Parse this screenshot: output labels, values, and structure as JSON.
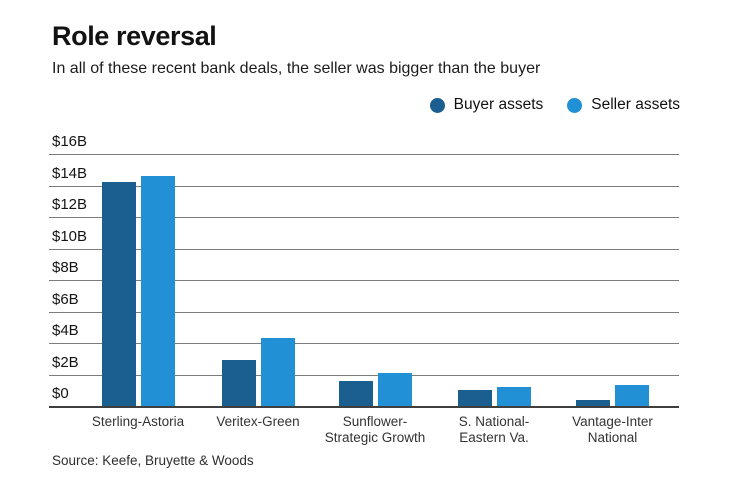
{
  "header": {
    "title": "Role reversal",
    "subtitle": "In all of these recent bank deals, the seller was bigger than the buyer"
  },
  "legend": {
    "items": [
      {
        "label": "Buyer assets",
        "color": "#1B5F91"
      },
      {
        "label": "Seller assets",
        "color": "#2290D5"
      }
    ]
  },
  "chart_data": {
    "type": "bar",
    "title": "Role reversal",
    "subtitle": "In all of these recent bank deals, the seller was bigger than the buyer",
    "categories": [
      "Sterling-Astoria",
      "Veritex-Green",
      "Sunflower-\nStrategic Growth",
      "S. National-\nEastern Va.",
      "Vantage-Inter\nNational"
    ],
    "series": [
      {
        "name": "Buyer assets",
        "color": "#1B5F91",
        "values": [
          14.2,
          2.9,
          1.6,
          1.0,
          0.4
        ]
      },
      {
        "name": "Seller assets",
        "color": "#2290D5",
        "values": [
          14.6,
          4.3,
          2.1,
          1.2,
          1.35
        ]
      }
    ],
    "unit": "billions of dollars",
    "y_ticks": [
      "$16B",
      "$14B",
      "$12B",
      "$10B",
      "$8B",
      "$6B",
      "$4B",
      "$2B",
      "$0"
    ],
    "y_tick_values": [
      16,
      14,
      12,
      10,
      8,
      6,
      4,
      2,
      0
    ],
    "ylim": [
      0,
      16
    ],
    "grid": true,
    "legend_position": "top-right"
  },
  "source": "Source: Keefe, Bruyette & Woods",
  "colors": {
    "buyer": "#1B5F91",
    "seller": "#2290D5",
    "gridline": "#7C7C7C",
    "axis": "#3F3F3F"
  }
}
